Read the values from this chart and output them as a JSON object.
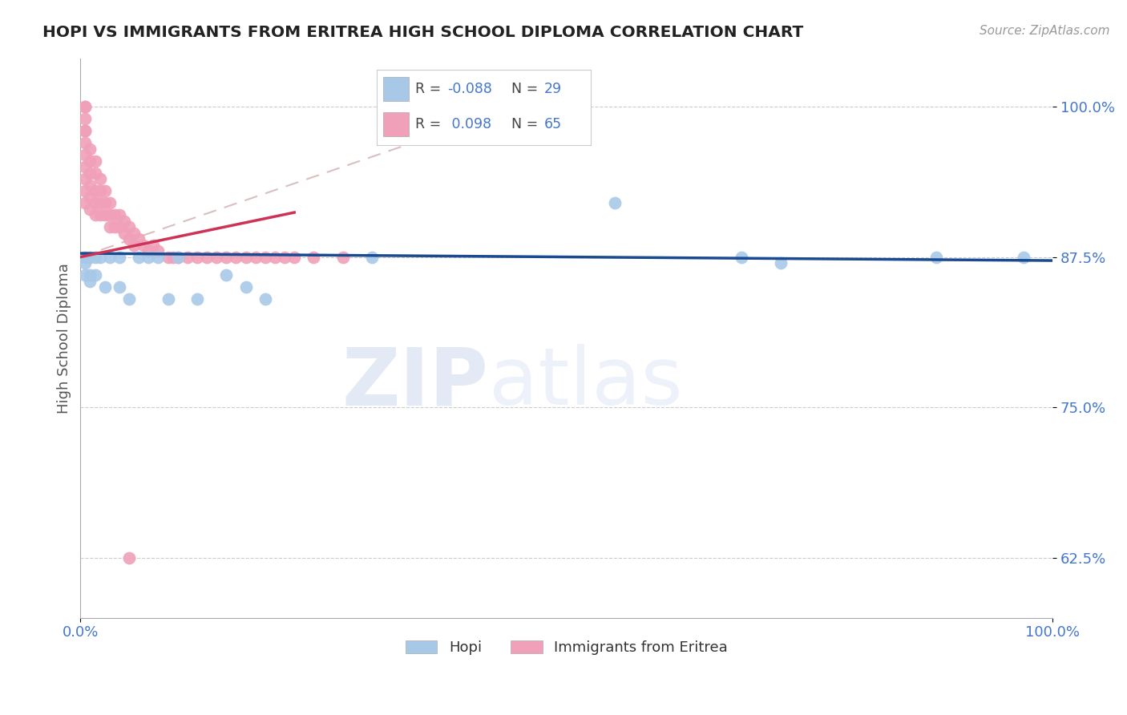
{
  "title": "HOPI VS IMMIGRANTS FROM ERITREA HIGH SCHOOL DIPLOMA CORRELATION CHART",
  "source": "Source: ZipAtlas.com",
  "ylabel": "High School Diploma",
  "xlim": [
    0.0,
    1.0
  ],
  "ylim": [
    0.575,
    1.04
  ],
  "yticks": [
    0.625,
    0.75,
    0.875,
    1.0
  ],
  "ytick_labels": [
    "62.5%",
    "75.0%",
    "87.5%",
    "100.0%"
  ],
  "xticks": [
    0.0,
    1.0
  ],
  "xtick_labels": [
    "0.0%",
    "100.0%"
  ],
  "hopi_color": "#a8c8e8",
  "eritrea_color": "#f0a0b8",
  "hopi_line_color": "#1a4a90",
  "eritrea_line_color": "#cc3355",
  "diag_color": "#d0b0b0",
  "hopi_R": -0.088,
  "hopi_N": 29,
  "eritrea_R": 0.098,
  "eritrea_N": 65,
  "hopi_x": [
    0.005,
    0.005,
    0.005,
    0.01,
    0.01,
    0.01,
    0.015,
    0.015,
    0.02,
    0.025,
    0.03,
    0.04,
    0.04,
    0.05,
    0.06,
    0.07,
    0.08,
    0.09,
    0.1,
    0.12,
    0.15,
    0.17,
    0.19,
    0.3,
    0.55,
    0.68,
    0.72,
    0.88,
    0.97
  ],
  "hopi_y": [
    0.875,
    0.87,
    0.86,
    0.875,
    0.86,
    0.855,
    0.875,
    0.86,
    0.875,
    0.85,
    0.875,
    0.875,
    0.85,
    0.84,
    0.875,
    0.875,
    0.875,
    0.84,
    0.875,
    0.84,
    0.86,
    0.85,
    0.84,
    0.875,
    0.92,
    0.875,
    0.87,
    0.875,
    0.875
  ],
  "eritrea_x": [
    0.005,
    0.005,
    0.005,
    0.005,
    0.005,
    0.005,
    0.005,
    0.005,
    0.005,
    0.005,
    0.005,
    0.01,
    0.01,
    0.01,
    0.01,
    0.01,
    0.01,
    0.015,
    0.015,
    0.015,
    0.015,
    0.015,
    0.02,
    0.02,
    0.02,
    0.02,
    0.025,
    0.025,
    0.025,
    0.03,
    0.03,
    0.03,
    0.035,
    0.035,
    0.04,
    0.04,
    0.045,
    0.045,
    0.05,
    0.05,
    0.055,
    0.055,
    0.06,
    0.065,
    0.07,
    0.075,
    0.08,
    0.09,
    0.095,
    0.1,
    0.11,
    0.12,
    0.13,
    0.14,
    0.15,
    0.16,
    0.17,
    0.18,
    0.19,
    0.2,
    0.21,
    0.22,
    0.24,
    0.27,
    0.05
  ],
  "eritrea_y": [
    1.0,
    1.0,
    0.99,
    0.98,
    0.98,
    0.97,
    0.96,
    0.95,
    0.94,
    0.93,
    0.92,
    0.965,
    0.955,
    0.945,
    0.935,
    0.925,
    0.915,
    0.955,
    0.945,
    0.93,
    0.92,
    0.91,
    0.94,
    0.93,
    0.92,
    0.91,
    0.93,
    0.92,
    0.91,
    0.92,
    0.91,
    0.9,
    0.91,
    0.9,
    0.91,
    0.9,
    0.905,
    0.895,
    0.9,
    0.89,
    0.895,
    0.885,
    0.89,
    0.885,
    0.88,
    0.885,
    0.88,
    0.875,
    0.875,
    0.875,
    0.875,
    0.875,
    0.875,
    0.875,
    0.875,
    0.875,
    0.875,
    0.875,
    0.875,
    0.875,
    0.875,
    0.875,
    0.875,
    0.875,
    0.625
  ],
  "watermark_zip": "ZIP",
  "watermark_atlas": "atlas",
  "background_color": "#ffffff",
  "grid_color": "#cccccc",
  "title_color": "#222222",
  "tick_label_color": "#4477cc",
  "legend_color": "#4477cc",
  "label_color": "#555555"
}
